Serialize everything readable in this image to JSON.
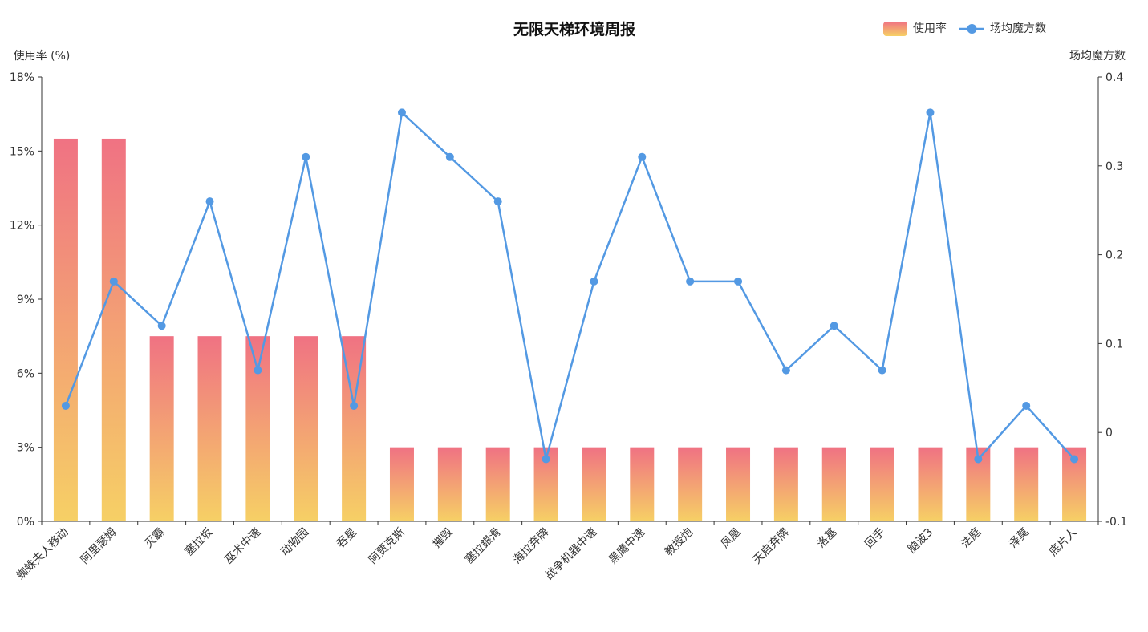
{
  "chart_data": {
    "type": "bar",
    "title": "无限天梯环境周报",
    "categories": [
      "蜘蛛夫人移动",
      "阿里瑟姆",
      "灭霸",
      "塞拉坂",
      "巫术中速",
      "动物园",
      "吞星",
      "阿贾克斯",
      "摧毁",
      "塞拉銀滑",
      "海拉弃牌",
      "战争机器中速",
      "黑鹰中速",
      "教授炮",
      "凤凰",
      "天启弃牌",
      "洛基",
      "回手",
      "脑波3",
      "法庭",
      "泽莫",
      "底片人"
    ],
    "series": [
      {
        "name": "使用率",
        "type": "bar",
        "axis": "left",
        "values": [
          15.5,
          15.5,
          7.5,
          7.5,
          7.5,
          7.5,
          7.5,
          3.0,
          3.0,
          3.0,
          3.0,
          3.0,
          3.0,
          3.0,
          3.0,
          3.0,
          3.0,
          3.0,
          3.0,
          3.0,
          3.0,
          3.0
        ]
      },
      {
        "name": "场均魔方数",
        "type": "line",
        "axis": "right",
        "values": [
          0.03,
          0.17,
          0.12,
          0.26,
          0.07,
          0.31,
          0.03,
          0.36,
          0.31,
          0.26,
          -0.03,
          0.17,
          0.31,
          0.17,
          0.17,
          0.07,
          0.12,
          0.07,
          0.36,
          -0.03,
          0.03,
          -0.03
        ]
      }
    ],
    "ylabel_left": "使用率 (%)",
    "ylabel_right": "场均魔方数",
    "ylim_left": [
      0,
      18
    ],
    "yticks_left": [
      "0%",
      "3%",
      "6%",
      "9%",
      "12%",
      "15%",
      "18%"
    ],
    "ylim_right": [
      -0.1,
      0.4
    ],
    "yticks_right": [
      "-0.1",
      "0",
      "0.1",
      "0.2",
      "0.3",
      "0.4"
    ],
    "legend_placement": "top-right",
    "grid": false,
    "colors": {
      "bar_top": "#f07283",
      "bar_bottom": "#f6d065",
      "line": "#5399e3",
      "axis": "#333333"
    }
  }
}
